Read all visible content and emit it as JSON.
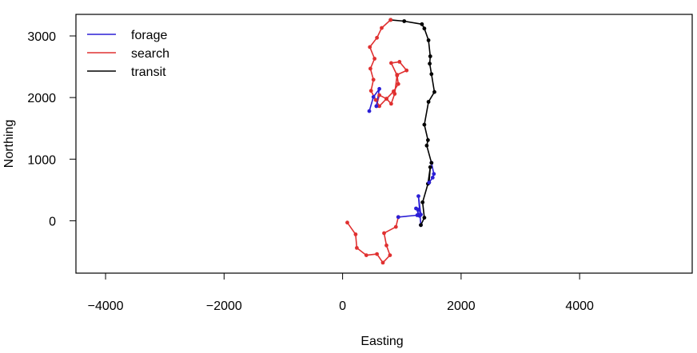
{
  "chart_data": {
    "type": "line",
    "xlabel": "Easting",
    "ylabel": "Northing",
    "xlim": [
      -4500,
      5900
    ],
    "ylim": [
      -850,
      3350
    ],
    "xticks": [
      -4000,
      -2000,
      0,
      2000,
      4000
    ],
    "yticks": [
      0,
      1000,
      2000,
      3000
    ],
    "legend_position": "top-left",
    "series": [
      {
        "name": "forage",
        "color": "#2b1fd6"
      },
      {
        "name": "search",
        "color": "#e03030"
      },
      {
        "name": "transit",
        "color": "#000000"
      }
    ],
    "segments": [
      {
        "series": "search",
        "points": [
          [
            80,
            -30
          ],
          [
            220,
            -220
          ],
          [
            240,
            -440
          ],
          [
            400,
            -560
          ],
          [
            580,
            -540
          ],
          [
            680,
            -680
          ],
          [
            800,
            -560
          ],
          [
            740,
            -400
          ],
          [
            700,
            -200
          ],
          [
            900,
            -100
          ],
          [
            940,
            60
          ]
        ]
      },
      {
        "series": "forage",
        "points": [
          [
            940,
            60
          ],
          [
            1260,
            90
          ],
          [
            1280,
            180
          ],
          [
            1240,
            200
          ],
          [
            1300,
            80
          ],
          [
            1320,
            100
          ],
          [
            1280,
            400
          ],
          [
            1320,
            -70
          ]
        ]
      },
      {
        "series": "transit",
        "points": [
          [
            1320,
            -70
          ],
          [
            1380,
            50
          ],
          [
            1350,
            300
          ],
          [
            1440,
            600
          ],
          [
            1480,
            870
          ],
          [
            1460,
            620
          ]
        ]
      },
      {
        "series": "forage",
        "points": [
          [
            1460,
            620
          ],
          [
            1520,
            700
          ],
          [
            1540,
            760
          ],
          [
            1500,
            940
          ]
        ]
      },
      {
        "series": "transit",
        "points": [
          [
            1500,
            940
          ],
          [
            1420,
            1220
          ],
          [
            1440,
            1310
          ],
          [
            1380,
            1560
          ],
          [
            1450,
            1930
          ],
          [
            1550,
            2090
          ],
          [
            1500,
            2380
          ],
          [
            1470,
            2550
          ],
          [
            1480,
            2670
          ],
          [
            1450,
            2930
          ],
          [
            1380,
            3120
          ],
          [
            1340,
            3190
          ],
          [
            1040,
            3240
          ],
          [
            810,
            3260
          ]
        ]
      },
      {
        "series": "search",
        "points": [
          [
            810,
            3260
          ],
          [
            660,
            3130
          ],
          [
            580,
            2970
          ],
          [
            460,
            2820
          ],
          [
            540,
            2630
          ],
          [
            470,
            2470
          ],
          [
            520,
            2290
          ],
          [
            480,
            2110
          ],
          [
            560,
            1960
          ],
          [
            620,
            1860
          ],
          [
            740,
            1980
          ],
          [
            860,
            2100
          ],
          [
            940,
            2220
          ],
          [
            920,
            2360
          ],
          [
            820,
            2560
          ],
          [
            960,
            2580
          ],
          [
            1080,
            2440
          ],
          [
            920,
            2370
          ],
          [
            880,
            2060
          ],
          [
            820,
            1900
          ],
          [
            740,
            1980
          ],
          [
            620,
            2040
          ],
          [
            570,
            1860
          ]
        ]
      },
      {
        "series": "forage",
        "points": [
          [
            570,
            1860
          ],
          [
            620,
            2140
          ],
          [
            520,
            2010
          ],
          [
            450,
            1780
          ]
        ]
      }
    ]
  }
}
